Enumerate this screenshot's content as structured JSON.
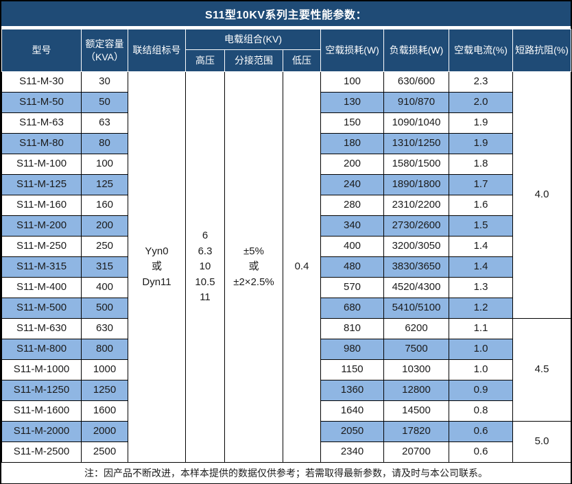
{
  "title": "S11型10KV系列主要性能参数：",
  "colors": {
    "header_bg": "#1F4B76",
    "stripe_bg": "#8FB6E3",
    "border": "#000000",
    "header_text": "#FFFFFF",
    "body_text": "#1A1A1A"
  },
  "header": {
    "model": "型号",
    "capacity": "额定容量\n（KVA）",
    "vector_group": "联结组标号",
    "voltage_combo": "电载组合(KV)",
    "hv": "高压",
    "tap_range": "分接范围",
    "lv": "低压",
    "no_load_loss": "空载损耗(W)",
    "load_loss": "负载损耗(W)",
    "no_load_current": "空载电流(%)",
    "impedance": "短路抗阻(%)"
  },
  "table": {
    "merged": {
      "vector_group_value": "Yyn0\n或\nDyn11",
      "hv_values": "6\n6.3\n10\n10.5\n11",
      "tap_range_values": "±5%\n或\n±2×2.5%",
      "lv_value": "0.4"
    },
    "rows": [
      {
        "model": "S11-M-30",
        "capacity": "30",
        "no_load_loss": "100",
        "load_loss": "630/600",
        "no_load_current": "2.3"
      },
      {
        "model": "S11-M-50",
        "capacity": "50",
        "no_load_loss": "130",
        "load_loss": "910/870",
        "no_load_current": "2.0"
      },
      {
        "model": "S11-M-63",
        "capacity": "63",
        "no_load_loss": "150",
        "load_loss": "1090/1040",
        "no_load_current": "1.9"
      },
      {
        "model": "S11-M-80",
        "capacity": "80",
        "no_load_loss": "180",
        "load_loss": "1310/1250",
        "no_load_current": "1.9"
      },
      {
        "model": "S11-M-100",
        "capacity": "100",
        "no_load_loss": "200",
        "load_loss": "1580/1500",
        "no_load_current": "1.8"
      },
      {
        "model": "S11-M-125",
        "capacity": "125",
        "no_load_loss": "240",
        "load_loss": "1890/1800",
        "no_load_current": "1.7"
      },
      {
        "model": "S11-M-160",
        "capacity": "160",
        "no_load_loss": "280",
        "load_loss": "2310/2200",
        "no_load_current": "1.6"
      },
      {
        "model": "S11-M-200",
        "capacity": "200",
        "no_load_loss": "340",
        "load_loss": "2730/2600",
        "no_load_current": "1.5"
      },
      {
        "model": "S11-M-250",
        "capacity": "250",
        "no_load_loss": "400",
        "load_loss": "3200/3050",
        "no_load_current": "1.4"
      },
      {
        "model": "S11-M-315",
        "capacity": "315",
        "no_load_loss": "480",
        "load_loss": "3830/3650",
        "no_load_current": "1.4"
      },
      {
        "model": "S11-M-400",
        "capacity": "400",
        "no_load_loss": "570",
        "load_loss": "4520/4300",
        "no_load_current": "1.3"
      },
      {
        "model": "S11-M-500",
        "capacity": "500",
        "no_load_loss": "680",
        "load_loss": "5410/5100",
        "no_load_current": "1.2"
      },
      {
        "model": "S11-M-630",
        "capacity": "630",
        "no_load_loss": "810",
        "load_loss": "6200",
        "no_load_current": "1.1"
      },
      {
        "model": "S11-M-800",
        "capacity": "800",
        "no_load_loss": "980",
        "load_loss": "7500",
        "no_load_current": "1.0"
      },
      {
        "model": "S11-M-1000",
        "capacity": "1000",
        "no_load_loss": "1150",
        "load_loss": "10300",
        "no_load_current": "1.0"
      },
      {
        "model": "S11-M-1250",
        "capacity": "1250",
        "no_load_loss": "1360",
        "load_loss": "12800",
        "no_load_current": "0.9"
      },
      {
        "model": "S11-M-1600",
        "capacity": "1600",
        "no_load_loss": "1640",
        "load_loss": "14500",
        "no_load_current": "0.8"
      },
      {
        "model": "S11-M-2000",
        "capacity": "2000",
        "no_load_loss": "2050",
        "load_loss": "17820",
        "no_load_current": "0.6"
      },
      {
        "model": "S11-M-2500",
        "capacity": "2500",
        "no_load_loss": "2340",
        "load_loss": "20700",
        "no_load_current": "0.6"
      }
    ],
    "impedance_groups": [
      {
        "value": "4.0",
        "span": 12
      },
      {
        "value": "4.5",
        "span": 5
      },
      {
        "value": "5.0",
        "span": 2
      }
    ]
  },
  "footer_note": "注：因产品不断改进，本样本提供的数据仅供参考；若需取得最新参数，请及时与本公司联系。"
}
